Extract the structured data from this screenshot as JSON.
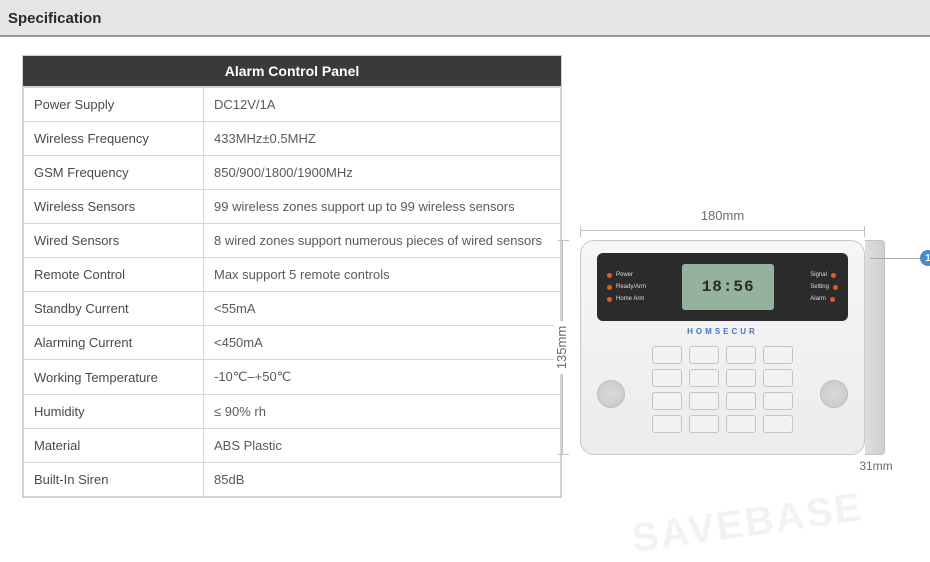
{
  "header": {
    "title": "Specification"
  },
  "table": {
    "title": "Alarm Control Panel",
    "rows": [
      {
        "label": "Power Supply",
        "value": "DC12V/1A"
      },
      {
        "label": "Wireless Frequency",
        "value": "433MHz±0.5MHZ"
      },
      {
        "label": "GSM Frequency",
        "value": "850/900/1800/1900MHz"
      },
      {
        "label": "Wireless Sensors",
        "value": "99 wireless zones support up to 99 wireless sensors"
      },
      {
        "label": "Wired Sensors",
        "value": "8 wired zones support numerous pieces of wired sensors"
      },
      {
        "label": "Remote Control",
        "value": "Max support 5 remote controls"
      },
      {
        "label": "Standby Current",
        "value": "<55mA"
      },
      {
        "label": "Alarming Current",
        "value": "<450mA"
      },
      {
        "label": "Working Temperature",
        "value": "-10℃–+50℃"
      },
      {
        "label": "Humidity",
        "value": "≤ 90% rh"
      },
      {
        "label": "Material",
        "value": "ABS Plastic"
      },
      {
        "label": "Built-In Siren",
        "value": "85dB"
      }
    ]
  },
  "diagram": {
    "width_label": "180mm",
    "height_label": "135mm",
    "depth_label": "31mm",
    "lcd_text": "18:56",
    "brand": "HOMSECUR",
    "callout_number": "1",
    "led_left": [
      "Power",
      "Ready/Arm",
      "Home Arm"
    ],
    "led_right": [
      "Signal",
      "Setting",
      "Alarm"
    ],
    "watermark": "SAVEBASE"
  },
  "colors": {
    "header_bg": "#e5e5e5",
    "header_border": "#9a9a9a",
    "table_title_bg": "#3a3a3a",
    "table_border": "#d6d6d6",
    "callout_badge": "#4a88c7",
    "lcd_bg": "#95b29e"
  }
}
